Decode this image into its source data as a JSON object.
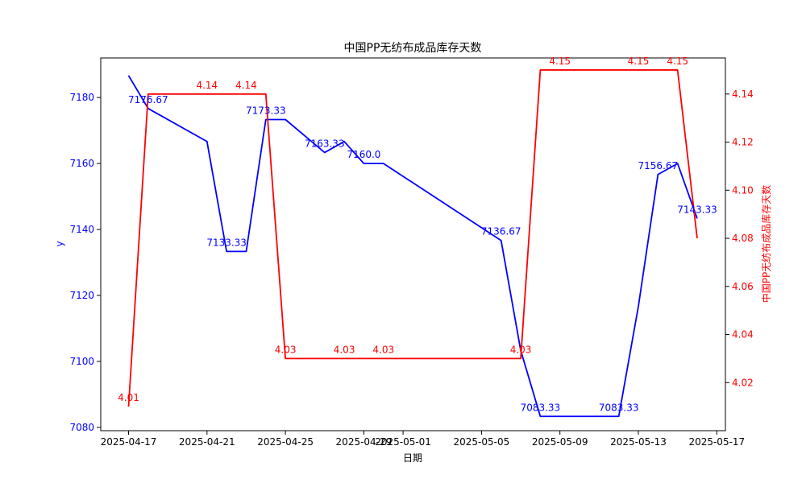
{
  "chart_data": {
    "type": "line",
    "title": "中国PP无纺布成品库存天数",
    "xlabel": "日期",
    "ylabel_left": "y",
    "ylabel_right": "中国PP无纺布成品库存天数",
    "x_ticks": [
      "2025-04-17",
      "2025-04-21",
      "2025-04-25",
      "2025-04-29",
      "2025-05-01",
      "2025-05-05",
      "2025-05-09",
      "2025-05-13",
      "2025-05-17"
    ],
    "left_axis": {
      "ylim": [
        7079,
        7192
      ],
      "ticks": [
        "7080",
        "7100",
        "7120",
        "7140",
        "7160",
        "7180"
      ]
    },
    "right_axis": {
      "ylim": [
        4.0,
        4.155
      ],
      "ticks": [
        "4.02",
        "4.04",
        "4.06",
        "4.08",
        "4.10",
        "4.12",
        "4.14"
      ]
    },
    "series": [
      {
        "axis": "left",
        "color": "#0000ff",
        "points": [
          {
            "date": "2025-04-17",
            "y": 7186.67
          },
          {
            "date": "2025-04-18",
            "y": 7176.67
          },
          {
            "date": "2025-04-21",
            "y": 7166.67
          },
          {
            "date": "2025-04-22",
            "y": 7133.33
          },
          {
            "date": "2025-04-23",
            "y": 7133.33
          },
          {
            "date": "2025-04-24",
            "y": 7173.33
          },
          {
            "date": "2025-04-25",
            "y": 7173.33
          },
          {
            "date": "2025-04-27",
            "y": 7163.33
          },
          {
            "date": "2025-04-28",
            "y": 7166.67
          },
          {
            "date": "2025-04-29",
            "y": 7160.0
          },
          {
            "date": "2025-04-30",
            "y": 7160.0
          },
          {
            "date": "2025-05-06",
            "y": 7136.67
          },
          {
            "date": "2025-05-07",
            "y": 7103.33
          },
          {
            "date": "2025-05-08",
            "y": 7083.33
          },
          {
            "date": "2025-05-12",
            "y": 7083.33
          },
          {
            "date": "2025-05-13",
            "y": 7116.67
          },
          {
            "date": "2025-05-14",
            "y": 7156.67
          },
          {
            "date": "2025-05-15",
            "y": 7160.0
          },
          {
            "date": "2025-05-16",
            "y": 7143.33
          }
        ],
        "labels": [
          {
            "date": "2025-04-18",
            "y": 7176.67,
            "text": "7176.67"
          },
          {
            "date": "2025-04-22",
            "y": 7133.33,
            "text": "7133.33"
          },
          {
            "date": "2025-04-24",
            "y": 7173.33,
            "text": "7173.33"
          },
          {
            "date": "2025-04-27",
            "y": 7163.33,
            "text": "7163.33"
          },
          {
            "date": "2025-04-29",
            "y": 7160.0,
            "text": "7160.0"
          },
          {
            "date": "2025-05-06",
            "y": 7136.67,
            "text": "7136.67"
          },
          {
            "date": "2025-05-08",
            "y": 7083.33,
            "text": "7083.33"
          },
          {
            "date": "2025-05-12",
            "y": 7083.33,
            "text": "7083.33"
          },
          {
            "date": "2025-05-14",
            "y": 7156.67,
            "text": "7156.67"
          },
          {
            "date": "2025-05-16",
            "y": 7143.33,
            "text": "7143.33"
          }
        ]
      },
      {
        "axis": "right",
        "color": "#ff0000",
        "points": [
          {
            "date": "2025-04-17",
            "y": 4.01
          },
          {
            "date": "2025-04-18",
            "y": 4.14
          },
          {
            "date": "2025-04-21",
            "y": 4.14
          },
          {
            "date": "2025-04-24",
            "y": 4.14
          },
          {
            "date": "2025-04-25",
            "y": 4.03
          },
          {
            "date": "2025-04-28",
            "y": 4.03
          },
          {
            "date": "2025-04-30",
            "y": 4.03
          },
          {
            "date": "2025-05-07",
            "y": 4.03
          },
          {
            "date": "2025-05-08",
            "y": 4.15
          },
          {
            "date": "2025-05-12",
            "y": 4.15
          },
          {
            "date": "2025-05-15",
            "y": 4.15
          },
          {
            "date": "2025-05-16",
            "y": 4.08
          }
        ],
        "labels": [
          {
            "date": "2025-04-17",
            "y": 4.01,
            "text": "4.01"
          },
          {
            "date": "2025-04-21",
            "y": 4.14,
            "text": "4.14"
          },
          {
            "date": "2025-04-23",
            "y": 4.14,
            "text": "4.14"
          },
          {
            "date": "2025-04-25",
            "y": 4.03,
            "text": "4.03"
          },
          {
            "date": "2025-04-28",
            "y": 4.03,
            "text": "4.03"
          },
          {
            "date": "2025-04-30",
            "y": 4.03,
            "text": "4.03"
          },
          {
            "date": "2025-05-07",
            "y": 4.03,
            "text": "4.03"
          },
          {
            "date": "2025-05-09",
            "y": 4.15,
            "text": "4.15"
          },
          {
            "date": "2025-05-13",
            "y": 4.15,
            "text": "4.15"
          },
          {
            "date": "2025-05-15",
            "y": 4.15,
            "text": "4.15"
          }
        ]
      }
    ]
  }
}
